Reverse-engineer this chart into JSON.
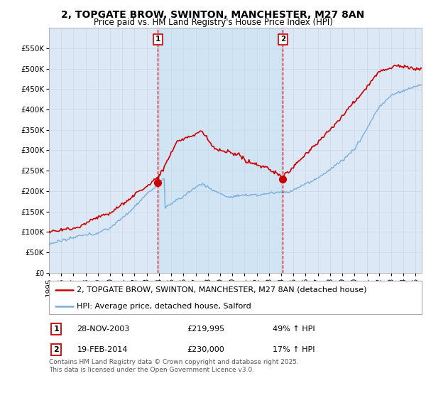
{
  "title": "2, TOPGATE BROW, SWINTON, MANCHESTER, M27 8AN",
  "subtitle": "Price paid vs. HM Land Registry's House Price Index (HPI)",
  "legend_line1": "2, TOPGATE BROW, SWINTON, MANCHESTER, M27 8AN (detached house)",
  "legend_line2": "HPI: Average price, detached house, Salford",
  "footnote": "Contains HM Land Registry data © Crown copyright and database right 2025.\nThis data is licensed under the Open Government Licence v3.0.",
  "sale1_date": "28-NOV-2003",
  "sale1_price": 219995,
  "sale1_hpi": "49% ↑ HPI",
  "sale2_date": "19-FEB-2014",
  "sale2_price": 230000,
  "sale2_hpi": "17% ↑ HPI",
  "sale1_x": 2003.91,
  "sale2_x": 2014.13,
  "ylim": [
    0,
    600000
  ],
  "xlim_start": 1995.0,
  "xlim_end": 2025.5,
  "hpi_color": "#7aaedb",
  "price_color": "#cc0000",
  "vline_color": "#cc0000",
  "bg_color": "#dce8f5",
  "shade_color": "#d0e4f4",
  "grid_color": "#c8d8e8",
  "title_fontsize": 10,
  "subtitle_fontsize": 8.5,
  "tick_fontsize": 7.5,
  "legend_fontsize": 8,
  "footnote_fontsize": 6.5
}
